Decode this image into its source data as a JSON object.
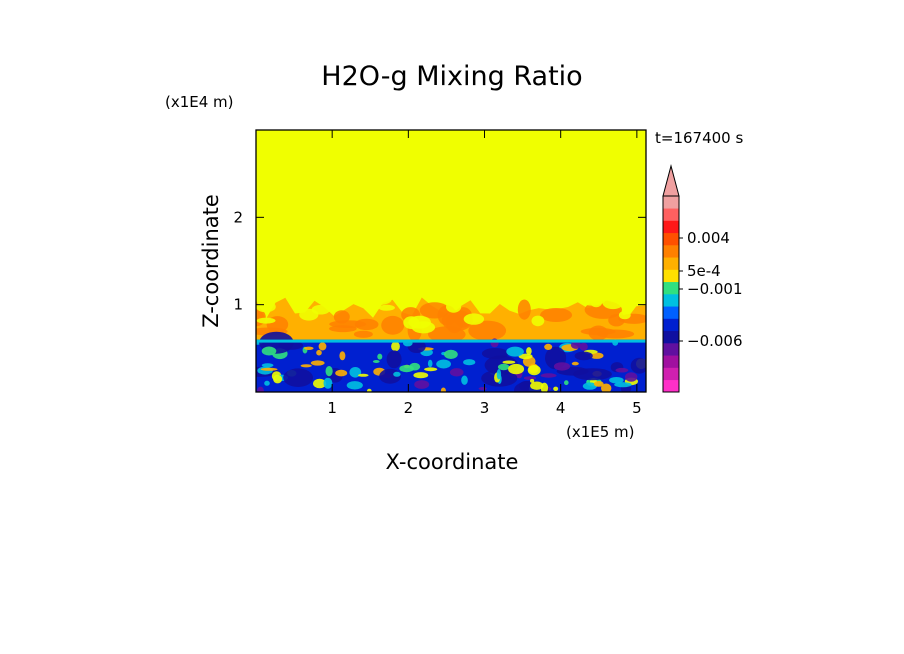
{
  "chart_data": {
    "type": "heatmap",
    "title": "H2O-g Mixing Ratio",
    "xlabel": "X-coordinate",
    "ylabel": "Z-coordinate",
    "x_scale_label": "(x1E5 m)",
    "y_scale_label": "(x1E4 m)",
    "time_label": "t=167400 s",
    "xlim": [
      0,
      5.12
    ],
    "ylim": [
      0,
      3.0
    ],
    "x_ticks": [
      1,
      2,
      3,
      4,
      5
    ],
    "y_ticks": [
      1,
      2
    ],
    "regions": [
      {
        "z_range": [
          1.05,
          3.0
        ],
        "level": "0.0005..0.001"
      },
      {
        "z_range": [
          0.6,
          1.05
        ],
        "level": "0.001..0.004"
      },
      {
        "z_range": [
          0.0,
          0.6
        ],
        "level": "-0.006..-0.001"
      }
    ],
    "colorbar": {
      "ticks": [
        {
          "value": 0.004,
          "label": "0.004"
        },
        {
          "value": 0.0005,
          "label": "5e-4"
        },
        {
          "value": -0.001,
          "label": "−0.001"
        },
        {
          "value": -0.006,
          "label": "−0.006"
        }
      ],
      "colors": [
        "#ff30c8",
        "#d020b0",
        "#a010a0",
        "#6010a0",
        "#1010a0",
        "#0020d0",
        "#0060ff",
        "#00c0e0",
        "#30e080",
        "#ffe000",
        "#ffb000",
        "#ff8000",
        "#ff5000",
        "#ff1818",
        "#ff6060",
        "#f0a0a0"
      ],
      "extend": "max"
    },
    "palette": {
      "background_yellow": "#f0ff00",
      "orange": "#ffb000",
      "dark_orange": "#ff8000",
      "blue": "#0020d0",
      "navy": "#1010a0",
      "cyan": "#00c0e0",
      "green": "#30e080",
      "purple": "#6010a0"
    }
  }
}
